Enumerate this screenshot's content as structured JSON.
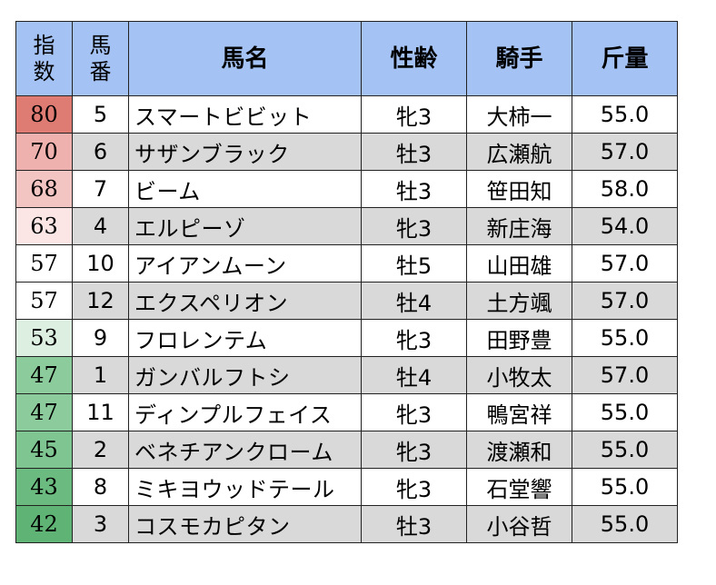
{
  "table": {
    "headers": {
      "index": [
        "指",
        "数"
      ],
      "number": [
        "馬",
        "番"
      ],
      "horse": "馬名",
      "sex_age": "性齢",
      "jockey": "騎手",
      "weight": "斤量"
    },
    "rows": [
      {
        "index": "80",
        "index_color": "#de7b73",
        "number": "5",
        "horse": "スマートビビット",
        "sex_age": "牝3",
        "jockey": "大柿一",
        "weight": "55.0"
      },
      {
        "index": "70",
        "index_color": "#efb1ad",
        "number": "6",
        "horse": "サザンブラック",
        "sex_age": "牡3",
        "jockey": "広瀬航",
        "weight": "57.0"
      },
      {
        "index": "68",
        "index_color": "#f3c5c2",
        "number": "7",
        "horse": "ビーム",
        "sex_age": "牡3",
        "jockey": "笹田知",
        "weight": "58.0"
      },
      {
        "index": "63",
        "index_color": "#fbe6e5",
        "number": "4",
        "horse": "エルピーゾ",
        "sex_age": "牝3",
        "jockey": "新庄海",
        "weight": "54.0"
      },
      {
        "index": "57",
        "index_color": "#ffffff",
        "number": "10",
        "horse": "アイアンムーン",
        "sex_age": "牡5",
        "jockey": "山田雄",
        "weight": "57.0"
      },
      {
        "index": "57",
        "index_color": "#ffffff",
        "number": "12",
        "horse": "エクスペリオン",
        "sex_age": "牡4",
        "jockey": "土方颯",
        "weight": "57.0"
      },
      {
        "index": "53",
        "index_color": "#dcefe0",
        "number": "9",
        "horse": "フロレンテム",
        "sex_age": "牝3",
        "jockey": "田野豊",
        "weight": "55.0"
      },
      {
        "index": "47",
        "index_color": "#8ccb9b",
        "number": "1",
        "horse": "ガンバルフトシ",
        "sex_age": "牡4",
        "jockey": "小牧太",
        "weight": "57.0"
      },
      {
        "index": "47",
        "index_color": "#8ccb9b",
        "number": "11",
        "horse": "ディンプルフェイス",
        "sex_age": "牝3",
        "jockey": "鴨宮祥",
        "weight": "55.0"
      },
      {
        "index": "45",
        "index_color": "#7fc591",
        "number": "2",
        "horse": "ベネチアンクローム",
        "sex_age": "牝3",
        "jockey": "渡瀬和",
        "weight": "55.0"
      },
      {
        "index": "43",
        "index_color": "#6bbb80",
        "number": "8",
        "horse": "ミキヨウッドテール",
        "sex_age": "牝3",
        "jockey": "石堂響",
        "weight": "55.0"
      },
      {
        "index": "42",
        "index_color": "#5fb475",
        "number": "3",
        "horse": "コスモカピタン",
        "sex_age": "牡3",
        "jockey": "小谷哲",
        "weight": "55.0"
      }
    ]
  }
}
